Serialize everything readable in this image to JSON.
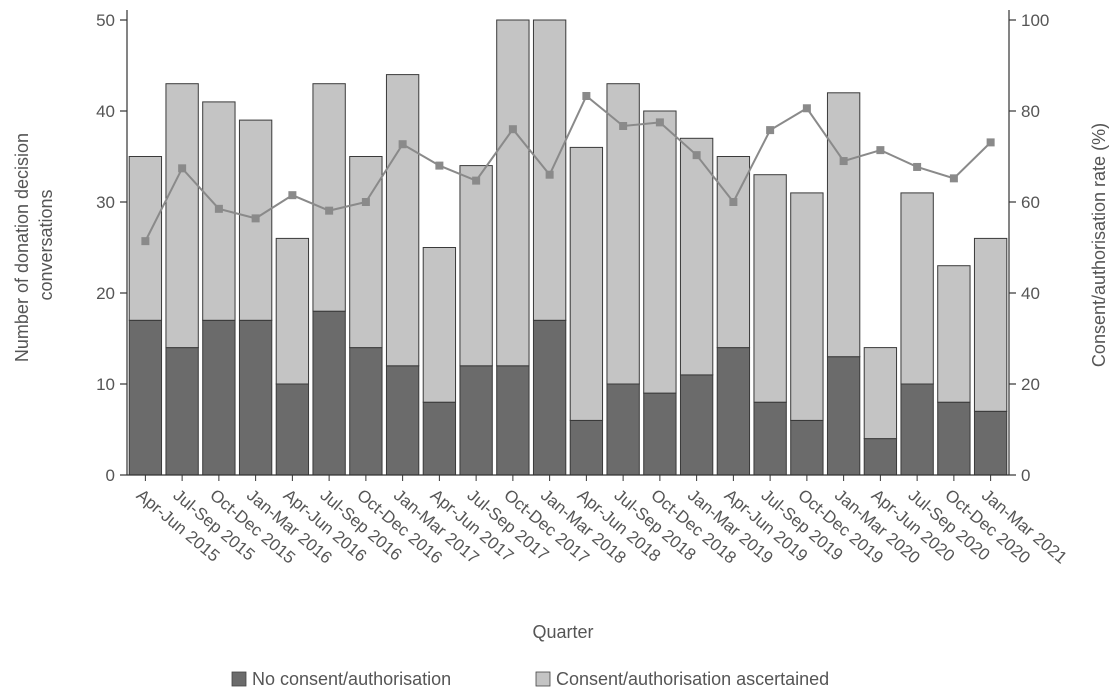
{
  "chart_data": {
    "type": "bar",
    "stacked": true,
    "xlabel": "Quarter",
    "ylabel": "Number of donation decision conversations",
    "ylabel_lines": [
      "Number of donation decision",
      "conversations"
    ],
    "y2label": "Consent/authorisation rate (%)",
    "ylim": [
      0,
      50
    ],
    "y2lim": [
      0,
      100
    ],
    "yticks": [
      "0",
      "10",
      "20",
      "30",
      "40",
      "50"
    ],
    "y2ticks": [
      "0",
      "20",
      "40",
      "60",
      "80",
      "100"
    ],
    "grid": false,
    "legend_position": "bottom",
    "categories": [
      "Apr-Jun 2015",
      "Jul-Sep 2015",
      "Oct-Dec 2015",
      "Jan-Mar 2016",
      "Apr-Jun 2016",
      "Jul-Sep 2016",
      "Oct-Dec 2016",
      "Jan-Mar 2017",
      "Apr-Jun 2017",
      "Jul-Sep 2017",
      "Oct-Dec 2017",
      "Jan-Mar 2018",
      "Apr-Jun 2018",
      "Jul-Sep 2018",
      "Oct-Dec 2018",
      "Jan-Mar 2019",
      "Apr-Jun 2019",
      "Jul-Sep 2019",
      "Oct-Dec 2019",
      "Jan-Mar 2020",
      "Apr-Jun 2020",
      "Jul-Sep 2020",
      "Oct-Dec 2020",
      "Jan-Mar 2021"
    ],
    "series": [
      {
        "name": "No consent/authorisation",
        "color": "#6b6b6b",
        "values": [
          17,
          14,
          17,
          17,
          10,
          18,
          14,
          12,
          8,
          12,
          12,
          17,
          6,
          10,
          9,
          11,
          14,
          8,
          6,
          13,
          4,
          10,
          8,
          7
        ]
      },
      {
        "name": "Consent/authorisation ascertained",
        "color": "#c4c4c4",
        "values": [
          18,
          29,
          24,
          22,
          16,
          25,
          21,
          32,
          17,
          22,
          38,
          33,
          30,
          33,
          31,
          26,
          21,
          25,
          25,
          29,
          10,
          21,
          15,
          19
        ]
      }
    ],
    "line_series": {
      "axis": "right",
      "color": "#8a8a8a",
      "values": [
        51.4,
        67.4,
        58.5,
        56.4,
        61.5,
        58.1,
        60.0,
        72.7,
        68.0,
        64.7,
        76.0,
        66.0,
        83.3,
        76.7,
        77.5,
        70.3,
        60.0,
        75.8,
        80.6,
        69.0,
        71.4,
        67.7,
        65.2,
        73.1
      ]
    }
  }
}
